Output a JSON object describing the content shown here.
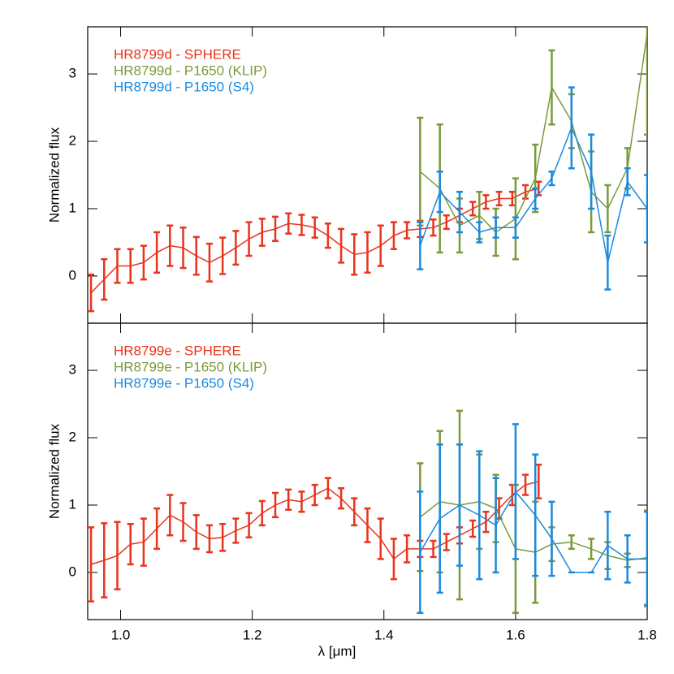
{
  "chart_data": [
    {
      "type": "line",
      "ylabel": "Normalized flux",
      "xlim": [
        0.95,
        1.8
      ],
      "ylim": [
        -0.7,
        3.7
      ],
      "yticks": [
        0,
        1,
        2,
        3
      ],
      "series": [
        {
          "name": "HR8799d - SPHERE",
          "color": "#e8341c",
          "x": [
            0.955,
            0.975,
            0.995,
            1.015,
            1.035,
            1.055,
            1.075,
            1.095,
            1.115,
            1.135,
            1.155,
            1.175,
            1.195,
            1.215,
            1.235,
            1.255,
            1.275,
            1.295,
            1.315,
            1.335,
            1.355,
            1.375,
            1.395,
            1.415,
            1.435,
            1.455,
            1.475,
            1.495,
            1.515,
            1.535,
            1.555,
            1.575,
            1.595,
            1.615,
            1.635
          ],
          "values": [
            -0.25,
            -0.05,
            0.15,
            0.15,
            0.2,
            0.35,
            0.45,
            0.42,
            0.3,
            0.2,
            0.3,
            0.42,
            0.55,
            0.65,
            0.7,
            0.78,
            0.76,
            0.72,
            0.6,
            0.45,
            0.32,
            0.35,
            0.45,
            0.6,
            0.68,
            0.7,
            0.72,
            0.8,
            0.9,
            1.0,
            1.1,
            1.15,
            1.15,
            1.25,
            1.3
          ],
          "errors": [
            0.27,
            0.3,
            0.25,
            0.25,
            0.25,
            0.3,
            0.3,
            0.3,
            0.28,
            0.28,
            0.27,
            0.25,
            0.25,
            0.2,
            0.18,
            0.15,
            0.15,
            0.15,
            0.18,
            0.25,
            0.3,
            0.3,
            0.3,
            0.2,
            0.12,
            0.12,
            0.12,
            0.1,
            0.1,
            0.1,
            0.1,
            0.1,
            0.1,
            0.1,
            0.1
          ]
        },
        {
          "name": "HR8799d - P1650 (KLIP)",
          "color": "#7a9a3a",
          "x": [
            1.455,
            1.485,
            1.515,
            1.545,
            1.57,
            1.6,
            1.63,
            1.655,
            1.685,
            1.715,
            1.74,
            1.77,
            1.8
          ],
          "values": [
            1.55,
            1.3,
            0.75,
            0.9,
            0.65,
            0.85,
            1.45,
            2.8,
            2.3,
            1.25,
            1.0,
            1.6,
            3.6
          ],
          "errors": [
            0.8,
            0.95,
            0.4,
            0.35,
            0.35,
            0.6,
            0.5,
            0.55,
            0.4,
            0.6,
            0.35,
            0.3,
            1.5
          ]
        },
        {
          "name": "HR8799d - P1650 (S4)",
          "color": "#1a8ae0",
          "x": [
            1.455,
            1.485,
            1.515,
            1.545,
            1.57,
            1.6,
            1.63,
            1.655,
            1.685,
            1.715,
            1.74,
            1.77,
            1.8
          ],
          "values": [
            0.45,
            1.25,
            0.95,
            0.65,
            0.72,
            0.72,
            1.15,
            1.45,
            2.2,
            1.55,
            0.2,
            1.4,
            1.0
          ],
          "errors": [
            0.35,
            0.3,
            0.3,
            0.15,
            0.15,
            0.15,
            0.15,
            0.1,
            0.6,
            0.55,
            0.4,
            0.2,
            0.5
          ]
        }
      ]
    },
    {
      "type": "line",
      "ylabel": "Normalized flux",
      "xlabel": "λ [μm]",
      "xlim": [
        0.95,
        1.8
      ],
      "xticks": [
        {
          "value": 1,
          "label": "1.0"
        },
        1.2,
        1.4,
        1.6,
        1.8
      ],
      "ylim": [
        -0.7,
        3.7
      ],
      "yticks": [
        0,
        1,
        2,
        3
      ],
      "series": [
        {
          "name": "HR8799e - SPHERE",
          "color": "#e8341c",
          "x": [
            0.955,
            0.975,
            0.995,
            1.015,
            1.035,
            1.055,
            1.075,
            1.095,
            1.115,
            1.135,
            1.155,
            1.175,
            1.195,
            1.215,
            1.235,
            1.255,
            1.275,
            1.295,
            1.315,
            1.335,
            1.355,
            1.375,
            1.395,
            1.415,
            1.435,
            1.455,
            1.475,
            1.495,
            1.515,
            1.535,
            1.555,
            1.575,
            1.595,
            1.615,
            1.635
          ],
          "values": [
            0.12,
            0.18,
            0.25,
            0.42,
            0.45,
            0.65,
            0.85,
            0.75,
            0.6,
            0.5,
            0.52,
            0.62,
            0.7,
            0.88,
            1.0,
            1.08,
            1.05,
            1.15,
            1.25,
            1.1,
            0.9,
            0.7,
            0.5,
            0.2,
            0.35,
            0.35,
            0.35,
            0.45,
            0.55,
            0.65,
            0.75,
            0.95,
            1.15,
            1.3,
            1.35
          ],
          "errors": [
            0.55,
            0.55,
            0.5,
            0.3,
            0.35,
            0.3,
            0.3,
            0.28,
            0.25,
            0.2,
            0.2,
            0.18,
            0.18,
            0.18,
            0.18,
            0.15,
            0.15,
            0.15,
            0.15,
            0.15,
            0.2,
            0.25,
            0.3,
            0.3,
            0.2,
            0.12,
            0.12,
            0.12,
            0.12,
            0.12,
            0.15,
            0.15,
            0.15,
            0.15,
            0.25
          ]
        },
        {
          "name": "HR8799e - P1650 (KLIP)",
          "color": "#7a9a3a",
          "x": [
            1.455,
            1.485,
            1.515,
            1.545,
            1.57,
            1.6,
            1.63,
            1.655,
            1.685,
            1.715,
            1.74,
            1.77,
            1.8
          ],
          "values": [
            0.82,
            1.05,
            1.0,
            1.05,
            0.95,
            0.35,
            0.3,
            0.42,
            0.45,
            0.35,
            0.25,
            0.18,
            0.22
          ],
          "errors": [
            0.8,
            1.05,
            1.4,
            0.7,
            0.5,
            0.95,
            0.75,
            0.25,
            0.1,
            0.15,
            0.2,
            0.1,
            0.7
          ]
        },
        {
          "name": "HR8799e - P1650 (S4)",
          "color": "#1a8ae0",
          "x": [
            1.455,
            1.485,
            1.515,
            1.545,
            1.57,
            1.6,
            1.63,
            1.655,
            1.685,
            1.715,
            1.74,
            1.77,
            1.8
          ],
          "values": [
            0.3,
            0.8,
            1.0,
            0.85,
            0.7,
            1.2,
            0.85,
            0.5,
            0.0,
            0.0,
            0.4,
            0.2,
            0.2
          ],
          "errors": [
            0.9,
            1.1,
            0.9,
            0.95,
            0.7,
            1.0,
            0.9,
            0.55,
            0,
            0,
            0.5,
            0.35,
            0.7
          ]
        }
      ]
    }
  ]
}
